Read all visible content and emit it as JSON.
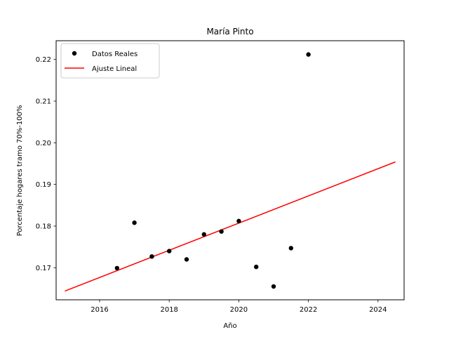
{
  "chart_data": {
    "type": "scatter",
    "title": "María Pinto",
    "xlabel": "Año",
    "ylabel": "Porcentaje hogares tramo 70%-100%",
    "xlim": [
      2014.75,
      2024.75
    ],
    "ylim": [
      0.1623,
      0.2245
    ],
    "xticks": [
      2016,
      2018,
      2020,
      2022,
      2024
    ],
    "yticks": [
      0.17,
      0.18,
      0.19,
      0.2,
      0.21,
      0.22
    ],
    "ytick_labels": [
      "0.17",
      "0.18",
      "0.19",
      "0.20",
      "0.21",
      "0.22"
    ],
    "grid": false,
    "legend_position": "top-left",
    "series": [
      {
        "name": "Datos Reales",
        "kind": "scatter",
        "color": "#000000",
        "points": [
          [
            2016.5,
            0.1699
          ],
          [
            2017.0,
            0.1808
          ],
          [
            2017.5,
            0.1727
          ],
          [
            2018.0,
            0.174
          ],
          [
            2018.5,
            0.172
          ],
          [
            2019.0,
            0.178
          ],
          [
            2019.5,
            0.1787
          ],
          [
            2020.0,
            0.1812
          ],
          [
            2020.5,
            0.1702
          ],
          [
            2021.0,
            0.1655
          ],
          [
            2021.5,
            0.1747
          ],
          [
            2022.0,
            0.2212
          ]
        ]
      },
      {
        "name": "Ajuste Lineal",
        "kind": "line",
        "color": "#ff0000",
        "points": [
          [
            2015.0,
            0.1644
          ],
          [
            2024.5,
            0.1954
          ]
        ]
      }
    ]
  }
}
